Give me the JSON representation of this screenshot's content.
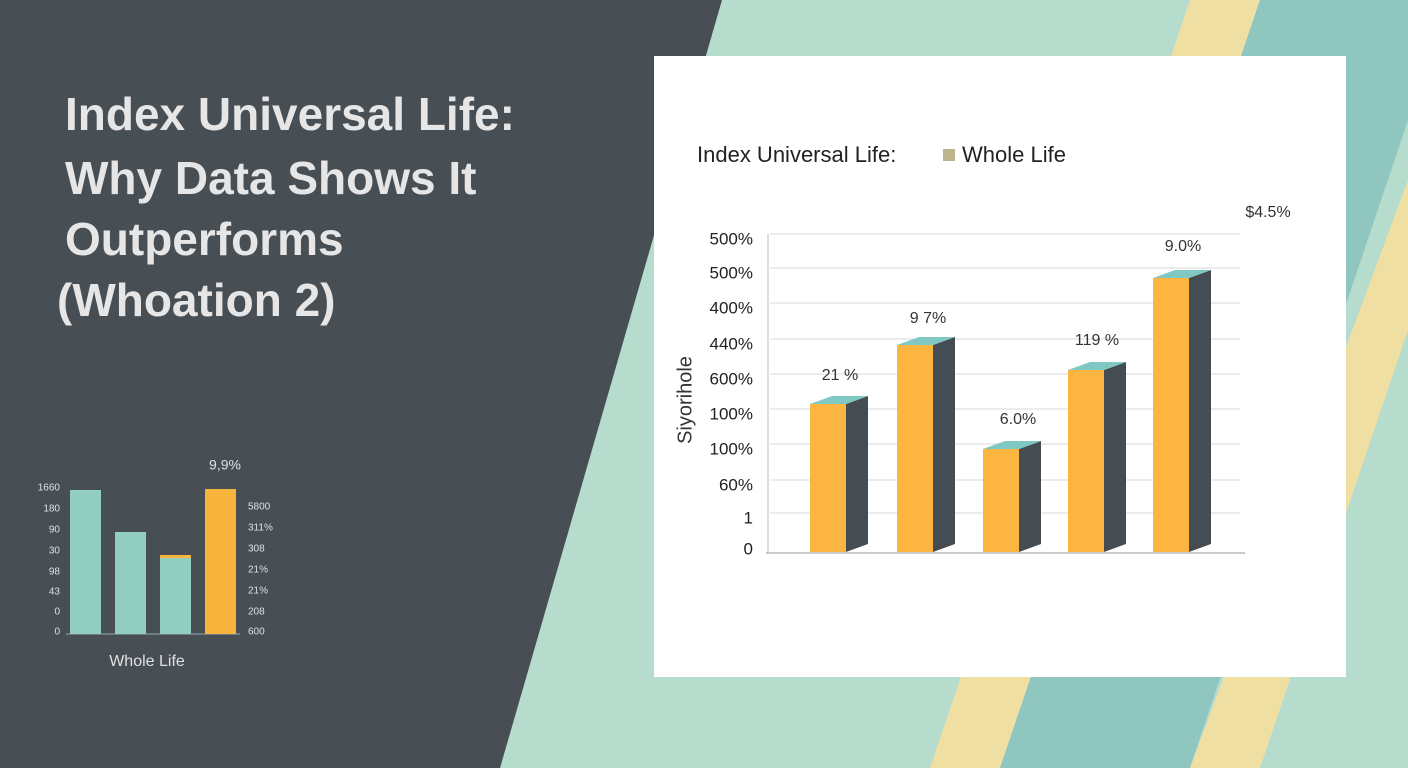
{
  "headline": {
    "lines": [
      "Index Universal Life:",
      "Why Data Shows It",
      "Outperforms",
      "(Whoation 2)"
    ]
  },
  "small_chart": {
    "top_label": "9,9%",
    "left_labels": [
      "1660",
      "180",
      "90",
      "30",
      "98",
      "43",
      "0",
      "0"
    ],
    "right_labels": [
      "5800",
      "311%",
      "308",
      "21%",
      "21%",
      "208",
      "600"
    ],
    "caption": "Whole Life"
  },
  "card": {
    "title_left": "Index Universal Life:",
    "title_right": "Whole Life",
    "corner_label": "$4.5%",
    "axis_title": "Siyorihole",
    "axis_labels": [
      "500%",
      "500%",
      "400%",
      "440%",
      "600%",
      "100%",
      "100%",
      "60%",
      "1",
      "0"
    ],
    "bar_labels": [
      "21 %",
      "9 7%",
      "6.0%",
      "119 %",
      "9.0%"
    ]
  }
}
